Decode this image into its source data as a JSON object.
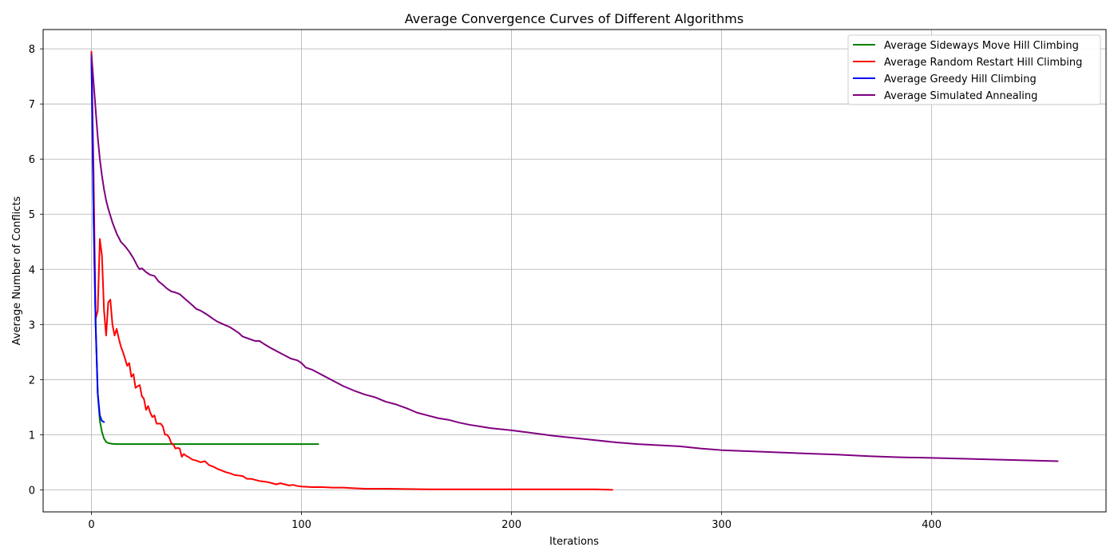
{
  "chart_data": {
    "type": "line",
    "title": "Average Convergence Curves of Different Algorithms",
    "xlabel": "Iterations",
    "ylabel": "Average Number of Conflicts",
    "xlim": [
      -23,
      483
    ],
    "ylim": [
      -0.4,
      8.35
    ],
    "xticks": [
      0,
      100,
      200,
      300,
      400
    ],
    "yticks": [
      0,
      1,
      2,
      3,
      4,
      5,
      6,
      7,
      8
    ],
    "grid": true,
    "legend_position": "top-right",
    "series": [
      {
        "name": "Average Sideways Move Hill Climbing",
        "color": "#008000",
        "x": [
          0,
          1,
          2,
          3,
          4,
          5,
          6,
          7,
          8,
          9,
          10,
          12,
          15,
          20,
          40,
          60,
          80,
          100,
          108
        ],
        "y": [
          7.9,
          5.0,
          3.0,
          1.75,
          1.25,
          1.05,
          0.93,
          0.87,
          0.85,
          0.84,
          0.835,
          0.83,
          0.83,
          0.83,
          0.83,
          0.83,
          0.83,
          0.83,
          0.83
        ]
      },
      {
        "name": "Average Random Restart Hill Climbing",
        "color": "#ff0000",
        "x": [
          0,
          1,
          2,
          3,
          4,
          5,
          6,
          7,
          8,
          9,
          10,
          11,
          12,
          13,
          14,
          15,
          16,
          17,
          18,
          19,
          20,
          21,
          22,
          23,
          24,
          25,
          26,
          27,
          28,
          29,
          30,
          31,
          32,
          33,
          34,
          35,
          36,
          37,
          38,
          39,
          40,
          41,
          42,
          43,
          44,
          45,
          46,
          48,
          50,
          52,
          54,
          56,
          58,
          60,
          62,
          64,
          66,
          68,
          70,
          72,
          74,
          76,
          78,
          80,
          82,
          84,
          86,
          88,
          90,
          92,
          94,
          96,
          98,
          100,
          105,
          110,
          115,
          120,
          125,
          130,
          140,
          150,
          160,
          170,
          180,
          190,
          200,
          210,
          220,
          230,
          240,
          248
        ],
        "y": [
          7.95,
          5.8,
          3.1,
          3.25,
          4.55,
          4.25,
          3.25,
          2.8,
          3.4,
          3.45,
          3.0,
          2.8,
          2.92,
          2.75,
          2.6,
          2.5,
          2.38,
          2.25,
          2.3,
          2.05,
          2.1,
          1.85,
          1.88,
          1.9,
          1.7,
          1.65,
          1.45,
          1.52,
          1.4,
          1.32,
          1.35,
          1.2,
          1.2,
          1.2,
          1.15,
          1.0,
          1.0,
          0.95,
          0.85,
          0.82,
          0.75,
          0.76,
          0.75,
          0.6,
          0.65,
          0.62,
          0.6,
          0.55,
          0.53,
          0.5,
          0.52,
          0.45,
          0.42,
          0.38,
          0.35,
          0.32,
          0.3,
          0.27,
          0.26,
          0.25,
          0.2,
          0.2,
          0.18,
          0.16,
          0.15,
          0.14,
          0.12,
          0.1,
          0.12,
          0.1,
          0.08,
          0.09,
          0.07,
          0.06,
          0.05,
          0.05,
          0.04,
          0.04,
          0.03,
          0.02,
          0.02,
          0.015,
          0.01,
          0.01,
          0.01,
          0.01,
          0.01,
          0.01,
          0.01,
          0.01,
          0.01,
          0.0
        ]
      },
      {
        "name": "Average Greedy Hill Climbing",
        "color": "#0000ff",
        "x": [
          0,
          1,
          2,
          3,
          4,
          5,
          6
        ],
        "y": [
          7.9,
          5.0,
          3.0,
          1.75,
          1.35,
          1.25,
          1.23
        ]
      },
      {
        "name": "Average Simulated Annealing",
        "color": "#800080",
        "x": [
          0,
          1,
          2,
          3,
          4,
          5,
          6,
          7,
          8,
          10,
          12,
          14,
          16,
          18,
          20,
          22,
          23,
          24,
          26,
          28,
          30,
          32,
          34,
          36,
          38,
          40,
          42,
          45,
          48,
          50,
          52,
          55,
          58,
          60,
          63,
          66,
          70,
          72,
          75,
          78,
          80,
          82,
          85,
          88,
          90,
          93,
          95,
          98,
          100,
          102,
          105,
          108,
          110,
          115,
          120,
          125,
          130,
          135,
          140,
          145,
          150,
          155,
          160,
          165,
          170,
          175,
          180,
          185,
          190,
          200,
          210,
          220,
          230,
          240,
          250,
          260,
          270,
          280,
          290,
          300,
          320,
          340,
          355,
          370,
          385,
          400,
          420,
          440,
          460
        ],
        "y": [
          7.9,
          7.4,
          6.9,
          6.4,
          6.0,
          5.7,
          5.45,
          5.25,
          5.1,
          4.85,
          4.65,
          4.5,
          4.42,
          4.32,
          4.2,
          4.05,
          4.0,
          4.02,
          3.95,
          3.9,
          3.88,
          3.78,
          3.72,
          3.65,
          3.6,
          3.58,
          3.55,
          3.45,
          3.35,
          3.28,
          3.25,
          3.18,
          3.1,
          3.05,
          3.0,
          2.95,
          2.85,
          2.78,
          2.74,
          2.7,
          2.7,
          2.65,
          2.58,
          2.52,
          2.48,
          2.42,
          2.38,
          2.35,
          2.3,
          2.22,
          2.18,
          2.12,
          2.08,
          1.98,
          1.88,
          1.8,
          1.73,
          1.68,
          1.6,
          1.55,
          1.48,
          1.4,
          1.35,
          1.3,
          1.27,
          1.22,
          1.18,
          1.15,
          1.12,
          1.08,
          1.03,
          0.98,
          0.94,
          0.9,
          0.86,
          0.83,
          0.81,
          0.79,
          0.75,
          0.72,
          0.69,
          0.66,
          0.64,
          0.61,
          0.59,
          0.58,
          0.56,
          0.54,
          0.52
        ]
      }
    ]
  }
}
